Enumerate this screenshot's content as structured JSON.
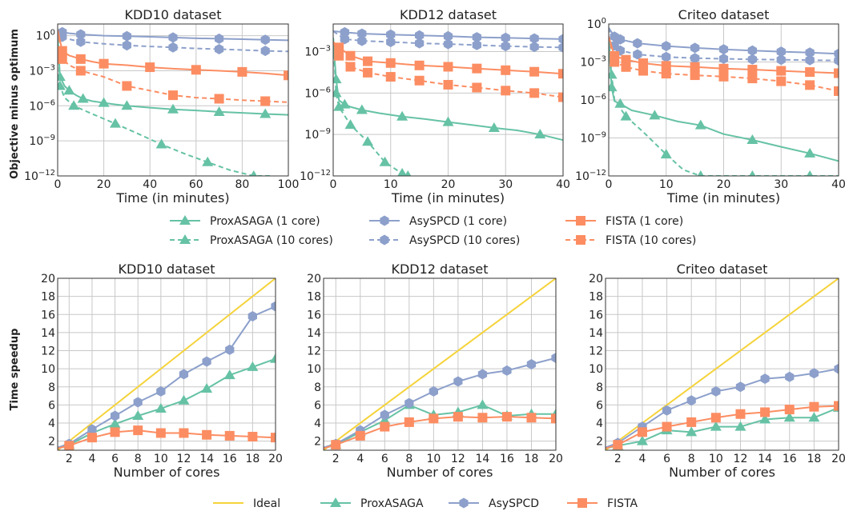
{
  "colors": {
    "ideal": "#f5d33a",
    "proxasaga": "#66c2a5",
    "asyspcd": "#8da0cb",
    "fista": "#fc8d62"
  },
  "icons": {
    "proxasaga": "triangle-marker",
    "asyspcd": "hexagon-marker",
    "fista": "square-marker"
  },
  "ylabels": {
    "top": "Objective minus optimum",
    "bottom": "Time speedup"
  },
  "legend_top": [
    "ProxASAGA (1 core)",
    "ProxASAGA (10 cores)",
    "AsySPCD (1 core)",
    "AsySPCD (10 cores)",
    "FISTA (1 core)",
    "FISTA (10 cores)"
  ],
  "legend_bottom": [
    "Ideal",
    "ProxASAGA",
    "AsySPCD",
    "FISTA"
  ],
  "chart_data": [
    {
      "type": "line",
      "title": "KDD10 dataset",
      "xlabel": "Time (in minutes)",
      "ylabel": "Objective minus optimum",
      "yscale": "log",
      "xlim": [
        0,
        100
      ],
      "ylim": [
        1e-12,
        10
      ],
      "xticks": [
        "0",
        "20",
        "40",
        "60",
        "80",
        "100"
      ],
      "yticks": [
        "10^0",
        "10^-3",
        "10^-6",
        "10^-9",
        "10^-12"
      ],
      "grid": true,
      "series": [
        {
          "name": "ProxASAGA (1 core)",
          "x": [
            0,
            1,
            3,
            5,
            8,
            11,
            15,
            20,
            25,
            30,
            40,
            50,
            60,
            70,
            80,
            90,
            100
          ],
          "y": [
            1,
            0.0003,
            5e-05,
            2e-05,
            8e-06,
            4e-06,
            2.5e-06,
            1.8e-06,
            1.3e-06,
            1e-06,
            7e-07,
            5e-07,
            4e-07,
            3e-07,
            2.5e-07,
            2e-07,
            1.7e-07
          ]
        },
        {
          "name": "ProxASAGA (10 cores)",
          "x": [
            0,
            1,
            3,
            7,
            15,
            25,
            35,
            45,
            55,
            65,
            75,
            85,
            92
          ],
          "y": [
            1,
            5e-05,
            5e-06,
            1e-06,
            2e-07,
            3e-08,
            4e-09,
            5e-10,
            8e-11,
            1.5e-11,
            3e-12,
            1e-12,
            1e-12
          ]
        },
        {
          "name": "AsySPCD (1 core)",
          "x": [
            0,
            2,
            5,
            10,
            20,
            30,
            40,
            50,
            60,
            70,
            80,
            90,
            100
          ],
          "y": [
            3,
            2,
            1.6,
            1.3,
            1,
            0.9,
            0.8,
            0.7,
            0.6,
            0.55,
            0.5,
            0.45,
            0.4
          ]
        },
        {
          "name": "AsySPCD (10 cores)",
          "x": [
            0,
            2,
            5,
            10,
            20,
            30,
            40,
            50,
            60,
            70,
            80,
            90,
            100
          ],
          "y": [
            3,
            0.8,
            0.5,
            0.3,
            0.2,
            0.15,
            0.12,
            0.1,
            0.08,
            0.07,
            0.06,
            0.05,
            0.045
          ]
        },
        {
          "name": "FISTA (1 core)",
          "x": [
            0,
            2,
            5,
            10,
            15,
            20,
            30,
            40,
            50,
            60,
            70,
            80,
            90,
            100
          ],
          "y": [
            3,
            0.05,
            0.02,
            0.01,
            0.006,
            0.004,
            0.003,
            0.002,
            0.0015,
            0.0012,
            0.001,
            0.0008,
            0.0006,
            0.0004
          ]
        },
        {
          "name": "FISTA (10 cores)",
          "x": [
            0,
            2,
            5,
            10,
            20,
            30,
            40,
            50,
            60,
            70,
            80,
            90,
            100
          ],
          "y": [
            3,
            0.01,
            0.003,
            0.001,
            0.0003,
            5e-05,
            2e-05,
            8e-06,
            5e-06,
            4e-06,
            3e-06,
            2.5e-06,
            2e-06
          ]
        }
      ]
    },
    {
      "type": "line",
      "title": "KDD12 dataset",
      "xlabel": "Time (in minutes)",
      "ylabel": "",
      "yscale": "log",
      "xlim": [
        0,
        40
      ],
      "ylim": [
        1e-12,
        0.1
      ],
      "xticks": [
        "0",
        "10",
        "20",
        "30",
        "40"
      ],
      "yticks": [
        "10^-3",
        "10^-6",
        "10^-9",
        "10^-12"
      ],
      "grid": true,
      "series": [
        {
          "name": "ProxASAGA (1 core)",
          "x": [
            0,
            0.5,
            1,
            2,
            3,
            5,
            8,
            12,
            16,
            20,
            24,
            28,
            32,
            36,
            40
          ],
          "y": [
            0.01,
            1e-05,
            3e-07,
            1.5e-07,
            1e-07,
            6e-08,
            3.5e-08,
            2e-08,
            1.3e-08,
            8e-09,
            5e-09,
            3e-09,
            2e-09,
            1e-09,
            4e-10
          ]
        },
        {
          "name": "ProxASAGA (10 cores)",
          "x": [
            0,
            0.5,
            1,
            3,
            6,
            9,
            12,
            13
          ],
          "y": [
            0.01,
            1e-06,
            1e-07,
            5e-09,
            3e-10,
            1e-11,
            1.5e-12,
            1e-12
          ]
        },
        {
          "name": "AsySPCD (1 core)",
          "x": [
            0,
            2,
            5,
            10,
            15,
            20,
            25,
            30,
            35,
            40
          ],
          "y": [
            0.03,
            0.025,
            0.02,
            0.017,
            0.015,
            0.013,
            0.011,
            0.01,
            0.009,
            0.008
          ]
        },
        {
          "name": "AsySPCD (10 cores)",
          "x": [
            0,
            2,
            5,
            10,
            15,
            20,
            25,
            30,
            35,
            40
          ],
          "y": [
            0.03,
            0.008,
            0.006,
            0.005,
            0.004,
            0.0035,
            0.003,
            0.0025,
            0.0022,
            0.002
          ]
        },
        {
          "name": "FISTA (1 core)",
          "x": [
            0,
            1,
            3,
            6,
            10,
            15,
            20,
            25,
            30,
            35,
            40
          ],
          "y": [
            0.005,
            0.002,
            0.0005,
            0.0002,
            0.00015,
            0.0001,
            8e-05,
            6e-05,
            4.5e-05,
            3.5e-05,
            2.5e-05
          ]
        },
        {
          "name": "FISTA (10 cores)",
          "x": [
            0,
            1,
            3,
            6,
            10,
            15,
            20,
            25,
            30,
            35,
            40
          ],
          "y": [
            0.005,
            0.0005,
            8e-05,
            3e-05,
            1.5e-05,
            8e-06,
            4e-06,
            2.5e-06,
            1.5e-06,
            1e-06,
            5e-07
          ]
        }
      ]
    },
    {
      "type": "line",
      "title": "Criteo dataset",
      "xlabel": "Time (in minutes)",
      "ylabel": "",
      "yscale": "log",
      "xlim": [
        0,
        40
      ],
      "ylim": [
        1e-12,
        1
      ],
      "xticks": [
        "0",
        "10",
        "20",
        "30",
        "40"
      ],
      "yticks": [
        "10^0",
        "10^-3",
        "10^-6",
        "10^-9",
        "10^-12"
      ],
      "grid": true,
      "series": [
        {
          "name": "ProxASAGA (1 core)",
          "x": [
            0,
            0.5,
            1,
            2,
            4,
            8,
            12,
            16,
            20,
            25,
            30,
            35,
            40
          ],
          "y": [
            0.05,
            1e-05,
            8e-07,
            5e-07,
            1.5e-07,
            6e-08,
            2e-08,
            1e-08,
            2e-09,
            7e-10,
            2e-10,
            6e-11,
            1.5e-11
          ]
        },
        {
          "name": "ProxASAGA (10 cores)",
          "x": [
            0,
            0.5,
            1,
            3,
            6,
            10,
            13,
            16,
            20,
            25,
            30,
            35,
            40
          ],
          "y": [
            0.05,
            0.0001,
            1e-06,
            5e-08,
            3e-09,
            5e-11,
            3e-12,
            1e-12,
            1e-12,
            1e-12,
            1e-12,
            1e-12,
            1e-12
          ]
        },
        {
          "name": "AsySPCD (1 core)",
          "x": [
            0,
            1,
            2,
            5,
            10,
            15,
            20,
            25,
            30,
            35,
            40
          ],
          "y": [
            0.5,
            0.1,
            0.06,
            0.03,
            0.018,
            0.013,
            0.01,
            0.008,
            0.0065,
            0.0055,
            0.0045
          ]
        },
        {
          "name": "AsySPCD (10 cores)",
          "x": [
            0,
            1,
            2,
            5,
            10,
            15,
            20,
            25,
            30,
            35,
            40
          ],
          "y": [
            0.5,
            0.02,
            0.008,
            0.004,
            0.0025,
            0.002,
            0.0018,
            0.0016,
            0.0015,
            0.0014,
            0.0013
          ]
        },
        {
          "name": "FISTA (1 core)",
          "x": [
            0,
            1,
            3,
            6,
            10,
            15,
            20,
            25,
            30,
            35,
            40
          ],
          "y": [
            0.1,
            0.003,
            0.0015,
            0.0008,
            0.0005,
            0.0004,
            0.0003,
            0.00025,
            0.0002,
            0.00016,
            0.00013
          ]
        },
        {
          "name": "FISTA (10 cores)",
          "x": [
            0,
            1,
            3,
            6,
            10,
            15,
            20,
            25,
            30,
            35,
            40
          ],
          "y": [
            0.1,
            0.001,
            0.0004,
            0.0002,
            0.00012,
            9e-05,
            7e-05,
            5e-05,
            3e-05,
            1.5e-05,
            5e-06
          ]
        }
      ]
    },
    {
      "type": "line",
      "title": "KDD10 dataset",
      "xlabel": "Number of cores",
      "ylabel": "Time speedup",
      "xlim": [
        1,
        20
      ],
      "ylim": [
        1,
        20
      ],
      "xticks": [
        "2",
        "4",
        "6",
        "8",
        "10",
        "12",
        "14",
        "16",
        "18",
        "20"
      ],
      "yticks": [
        "2",
        "4",
        "6",
        "8",
        "10",
        "12",
        "14",
        "16",
        "18",
        "20"
      ],
      "grid": true,
      "series": [
        {
          "name": "Ideal",
          "x": [
            1,
            20
          ],
          "y": [
            1,
            20
          ]
        },
        {
          "name": "ProxASAGA",
          "x": [
            1,
            2,
            4,
            6,
            8,
            10,
            12,
            14,
            16,
            18,
            20
          ],
          "y": [
            1.2,
            1.6,
            2.9,
            3.9,
            4.8,
            5.6,
            6.5,
            7.8,
            9.3,
            10.2,
            11.1
          ]
        },
        {
          "name": "AsySPCD",
          "x": [
            1,
            2,
            4,
            6,
            8,
            10,
            12,
            14,
            16,
            18,
            20
          ],
          "y": [
            1.3,
            1.7,
            3.3,
            4.8,
            6.3,
            7.5,
            9.4,
            10.8,
            12.1,
            15.8,
            16.9
          ]
        },
        {
          "name": "FISTA",
          "x": [
            1,
            2,
            4,
            6,
            8,
            10,
            12,
            14,
            16,
            18,
            20
          ],
          "y": [
            1.2,
            1.5,
            2.4,
            3.0,
            3.2,
            2.9,
            2.9,
            2.7,
            2.6,
            2.5,
            2.4
          ]
        }
      ]
    },
    {
      "type": "line",
      "title": "KDD12 dataset",
      "xlabel": "Number of cores",
      "ylabel": "",
      "xlim": [
        1,
        20
      ],
      "ylim": [
        1,
        20
      ],
      "xticks": [
        "2",
        "4",
        "6",
        "8",
        "10",
        "12",
        "14",
        "16",
        "18",
        "20"
      ],
      "yticks": [
        "2",
        "4",
        "6",
        "8",
        "10",
        "12",
        "14",
        "16",
        "18",
        "20"
      ],
      "grid": true,
      "series": [
        {
          "name": "Ideal",
          "x": [
            1,
            20
          ],
          "y": [
            1,
            20
          ]
        },
        {
          "name": "ProxASAGA",
          "x": [
            1,
            2,
            4,
            6,
            8,
            10,
            12,
            14,
            16,
            18,
            20
          ],
          "y": [
            1.2,
            1.6,
            3.0,
            4.3,
            6.0,
            4.9,
            5.2,
            6.0,
            4.8,
            5.0,
            5.0
          ]
        },
        {
          "name": "AsySPCD",
          "x": [
            1,
            2,
            4,
            6,
            8,
            10,
            12,
            14,
            16,
            18,
            20
          ],
          "y": [
            1.3,
            1.7,
            3.2,
            4.9,
            6.2,
            7.5,
            8.6,
            9.4,
            9.8,
            10.5,
            11.2
          ]
        },
        {
          "name": "FISTA",
          "x": [
            1,
            2,
            4,
            6,
            8,
            10,
            12,
            14,
            16,
            18,
            20
          ],
          "y": [
            1.2,
            1.6,
            2.6,
            3.6,
            4.1,
            4.5,
            4.7,
            4.6,
            4.7,
            4.6,
            4.5
          ]
        }
      ]
    },
    {
      "type": "line",
      "title": "Criteo dataset",
      "xlabel": "Number of cores",
      "ylabel": "",
      "xlim": [
        1,
        20
      ],
      "ylim": [
        1,
        20
      ],
      "xticks": [
        "2",
        "4",
        "6",
        "8",
        "10",
        "12",
        "14",
        "16",
        "18",
        "20"
      ],
      "yticks": [
        "2",
        "4",
        "6",
        "8",
        "10",
        "12",
        "14",
        "16",
        "18",
        "20"
      ],
      "grid": true,
      "series": [
        {
          "name": "Ideal",
          "x": [
            1,
            20
          ],
          "y": [
            1,
            20
          ]
        },
        {
          "name": "ProxASAGA",
          "x": [
            1,
            2,
            4,
            6,
            8,
            10,
            12,
            14,
            16,
            18,
            20
          ],
          "y": [
            1.2,
            1.5,
            2.0,
            3.2,
            3.0,
            3.6,
            3.6,
            4.4,
            4.6,
            4.6,
            5.7
          ]
        },
        {
          "name": "AsySPCD",
          "x": [
            1,
            2,
            4,
            6,
            8,
            10,
            12,
            14,
            16,
            18,
            20
          ],
          "y": [
            1.3,
            1.8,
            3.6,
            5.4,
            6.5,
            7.5,
            8.0,
            8.9,
            9.1,
            9.5,
            10.0
          ]
        },
        {
          "name": "FISTA",
          "x": [
            1,
            2,
            4,
            6,
            8,
            10,
            12,
            14,
            16,
            18,
            20
          ],
          "y": [
            1.2,
            1.6,
            3.0,
            3.6,
            4.1,
            4.6,
            5.0,
            5.2,
            5.5,
            5.8,
            5.9
          ]
        }
      ]
    }
  ]
}
